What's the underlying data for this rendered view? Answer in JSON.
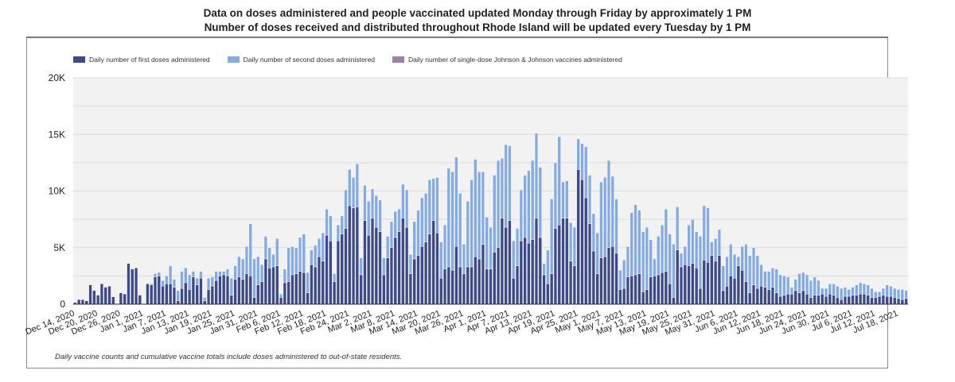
{
  "header": {
    "line1": "Data on doses administered and people vaccinated updated Monday through Friday by approximately 1 PM",
    "line2": "Number of doses received and distributed throughout Rhode Island will be updated every Tuesday by 1 PM"
  },
  "footnote": "Daily vaccine counts and cumulative vaccine totals include doses administered to out-of-state residents.",
  "colors": {
    "first": "#3d4a86",
    "second": "#86abe1",
    "jj": "#9a85a6",
    "plot_bg": "#f2f2f2",
    "grid": "#dcdcdc"
  },
  "chart_data": {
    "type": "bar",
    "stacked": true,
    "title": "",
    "xlabel": "",
    "ylabel": "",
    "ylim": [
      0,
      20000
    ],
    "yticks": [
      0,
      5000,
      10000,
      15000,
      20000
    ],
    "ytick_labels": [
      "0",
      "5K",
      "10K",
      "15K",
      "20K"
    ],
    "grid": true,
    "legend_position": "top-left",
    "start_date": "Dec 14, 2020",
    "xtick_labels": [
      "Dec 14, 2020",
      "Dec 20, 2020",
      "Dec 26, 2020",
      "Jan 1, 2021",
      "Jan 7, 2021",
      "Jan 13, 2021",
      "Jan 19, 2021",
      "Jan 25, 2021",
      "Jan 31, 2021",
      "Feb 6, 2021",
      "Feb 12, 2021",
      "Feb 18, 2021",
      "Feb 24, 2021",
      "Mar 2, 2021",
      "Mar 8, 2021",
      "Mar 14, 2021",
      "Mar 20, 2021",
      "Mar 26, 2021",
      "Apr 1, 2021",
      "Apr 7, 2021",
      "Apr 13, 2021",
      "Apr 19, 2021",
      "Apr 25, 2021",
      "May 1, 2021",
      "May 7, 2021",
      "May 13, 2021",
      "May 19, 2021",
      "May 25, 2021",
      "May 31, 2021",
      "Jun 6, 2021",
      "Jun 12, 2021",
      "Jun 18, 2021",
      "Jun 24, 2021",
      "Jun 30, 2021",
      "Jul 6, 2021",
      "Jul 12, 2021",
      "Jul 18, 2021"
    ],
    "xtick_every_days": 6,
    "series": [
      {
        "name": "Daily number of first doses administered",
        "key": "first",
        "values": [
          150,
          400,
          400,
          300,
          1700,
          1200,
          800,
          1800,
          1500,
          1600,
          650,
          0,
          1000,
          900,
          3600,
          3100,
          3200,
          800,
          50,
          1800,
          1700,
          2400,
          2500,
          1600,
          1800,
          1800,
          1500,
          300,
          1400,
          1900,
          1300,
          2400,
          1700,
          2300,
          300,
          1300,
          1600,
          2100,
          2500,
          2600,
          2500,
          800,
          2200,
          2400,
          2200,
          2700,
          2500,
          600,
          1700,
          2000,
          4000,
          3200,
          3300,
          3400,
          600,
          1900,
          2000,
          2600,
          2700,
          2900,
          2800,
          1000,
          3500,
          3300,
          4200,
          3800,
          6100,
          5600,
          2000,
          5600,
          6200,
          6700,
          8700,
          8500,
          8600,
          2600,
          7400,
          6100,
          7600,
          6800,
          6400,
          2600,
          4100,
          5000,
          5900,
          6400,
          7600,
          6800,
          2700,
          4000,
          4300,
          5100,
          5500,
          6200,
          7400,
          6300,
          2300,
          3100,
          3300,
          3000,
          5100,
          3300,
          2700,
          3300,
          3300,
          4200,
          4000,
          5300,
          3100,
          3100,
          4600,
          5000,
          7600,
          6800,
          7400,
          2300,
          3400,
          5600,
          5900,
          5400,
          5700,
          7600,
          5900,
          2600,
          1800,
          2700,
          6700,
          7000,
          7600,
          7600,
          3800,
          3400,
          11900,
          11000,
          9400,
          7100,
          4700,
          2700,
          4100,
          4200,
          5000,
          5100,
          4500,
          1300,
          1400,
          2400,
          2500,
          2600,
          2700,
          1100,
          1300,
          2400,
          2500,
          2600,
          2800,
          2900,
          1800,
          600,
          4800,
          3300,
          3500,
          3400,
          3600,
          3200,
          1400,
          3900,
          3700,
          4300,
          3800,
          4300,
          1200,
          1600,
          2500,
          2300,
          3400,
          3000,
          2000,
          1000,
          1700,
          1400,
          1600,
          1500,
          1300,
          1500,
          1000,
          700,
          800,
          900,
          900,
          1200,
          1000,
          1200,
          900,
          600,
          800,
          800,
          900,
          700,
          900,
          800,
          600,
          400,
          700,
          700,
          800,
          800,
          900,
          900,
          800,
          600,
          600,
          700,
          800,
          700,
          700,
          600,
          500,
          400,
          500
        ]
      },
      {
        "name": "Daily number of second doses administered",
        "key": "second",
        "values": [
          0,
          0,
          0,
          0,
          0,
          0,
          0,
          0,
          0,
          0,
          0,
          0,
          0,
          0,
          0,
          0,
          0,
          0,
          0,
          0,
          100,
          300,
          300,
          500,
          700,
          1600,
          700,
          900,
          1500,
          1300,
          1300,
          500,
          600,
          600,
          300,
          1000,
          800,
          800,
          400,
          300,
          600,
          1500,
          1200,
          1800,
          1800,
          2400,
          4600,
          3400,
          2500,
          1500,
          2000,
          1800,
          1100,
          2400,
          300,
          1200,
          3000,
          2500,
          2300,
          3000,
          3400,
          1800,
          1300,
          1900,
          1600,
          2500,
          2300,
          2200,
          700,
          1400,
          1600,
          3400,
          3200,
          2700,
          3800,
          1500,
          3100,
          3000,
          2600,
          2800,
          2800,
          1500,
          1900,
          2300,
          2300,
          2000,
          3000,
          3300,
          1700,
          3300,
          4000,
          4300,
          4300,
          4800,
          3700,
          4900,
          3200,
          3900,
          8700,
          8700,
          7900,
          6500,
          2600,
          5800,
          7700,
          8600,
          7700,
          6400,
          4600,
          3700,
          6800,
          7700,
          5300,
          7300,
          6600,
          3300,
          3300,
          4500,
          5500,
          6400,
          7000,
          7500,
          6200,
          1000,
          3000,
          6600,
          5800,
          7800,
          3200,
          3300,
          3400,
          3400,
          2700,
          3200,
          4500,
          4300,
          3300,
          3600,
          6700,
          7000,
          7700,
          6200,
          4800,
          1700,
          2500,
          2700,
          5600,
          6200,
          5600,
          5300,
          5500,
          3300,
          1500,
          3400,
          4200,
          5500,
          4400,
          4700,
          3800,
          1200,
          1600,
          3600,
          3900,
          3200,
          4600,
          4800,
          4800,
          1200,
          2000,
          2300,
          2200,
          2600,
          2800,
          2100,
          800,
          2100,
          3300,
          3300,
          3300,
          2900,
          1900,
          1400,
          1600,
          1700,
          2100,
          1900,
          1700,
          1500,
          600,
          1000,
          1700,
          1600,
          1700,
          1500,
          1600,
          1300,
          500,
          700,
          900,
          1000,
          1000,
          1000,
          800,
          600,
          700,
          900,
          1000,
          900,
          900,
          800,
          500,
          400,
          600,
          1000,
          900,
          800,
          800,
          900,
          700,
          500,
          500
        ]
      },
      {
        "name": "Daily number of single-dose Johnson & Johnson vaccines administered",
        "key": "jj",
        "values": [
          0,
          0,
          0,
          0,
          0,
          0,
          0,
          0,
          0,
          0,
          0,
          0,
          0,
          0,
          0,
          0,
          0,
          0,
          0,
          0,
          0,
          0,
          0,
          0,
          0,
          0,
          0,
          0,
          0,
          0,
          0,
          0,
          0,
          0,
          0,
          0,
          0,
          0,
          0,
          0,
          0,
          0,
          0,
          0,
          0,
          0,
          0,
          0,
          0,
          0,
          0,
          0,
          0,
          0,
          0,
          0,
          0,
          0,
          0,
          0,
          0,
          0,
          0,
          0,
          0,
          0,
          0,
          0,
          0,
          0,
          0,
          0,
          0,
          0,
          0,
          0,
          0,
          0,
          0,
          0,
          0,
          0,
          0,
          0,
          0,
          0,
          0,
          0,
          0,
          0,
          0,
          0,
          0,
          0,
          0,
          0,
          0,
          0,
          0,
          0,
          0,
          0,
          0,
          0,
          0,
          0,
          0,
          0,
          0,
          0,
          0,
          0,
          0,
          0,
          0,
          0,
          0,
          0,
          0,
          0,
          0,
          0,
          0,
          0,
          0,
          0,
          0,
          0,
          0,
          0,
          0,
          0,
          0,
          0,
          0,
          0,
          0,
          0,
          0,
          0,
          0,
          0,
          0,
          0,
          0,
          0,
          0,
          0,
          0,
          0,
          0,
          0,
          0,
          0,
          0,
          0,
          0,
          0,
          0,
          0,
          0,
          0,
          0,
          0,
          0,
          0,
          0,
          0,
          0,
          0,
          0,
          0,
          0,
          0,
          0,
          0,
          0,
          0,
          0,
          0,
          0,
          0,
          0,
          0,
          0,
          0,
          0,
          0,
          0,
          0,
          0,
          0,
          0,
          0,
          0,
          0,
          0,
          0,
          0,
          0,
          0,
          0,
          0,
          0,
          0,
          0,
          0,
          0,
          0,
          0,
          0,
          0,
          0,
          0,
          0,
          0,
          0,
          0,
          0,
          0,
          0,
          0,
          0,
          0
        ]
      }
    ]
  }
}
